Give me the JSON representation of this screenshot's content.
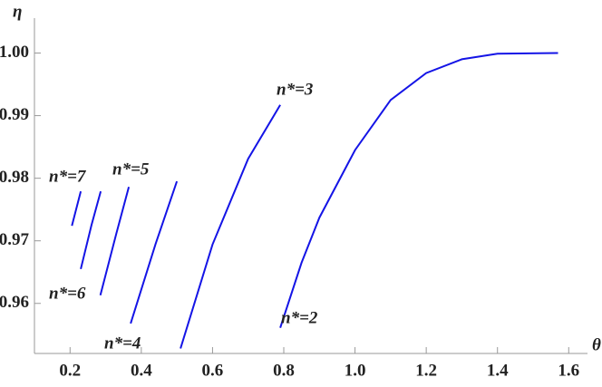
{
  "chart_data": {
    "type": "line",
    "xlabel": "θ",
    "ylabel": "η",
    "xlim": [
      0.1,
      1.64
    ],
    "ylim": [
      0.952,
      1.005
    ],
    "xticks": [
      0.2,
      0.4,
      0.6,
      0.8,
      {
        "value": 1,
        "label": "1.0"
      },
      1.2,
      1.4,
      1.6
    ],
    "yticks": [
      0.96,
      0.97,
      0.98,
      0.99,
      {
        "value": 1,
        "label": "1.00"
      }
    ],
    "series": [
      {
        "name": "n*=2",
        "color": "#1414e6",
        "x": [
          0.79,
          0.85,
          0.9,
          1.0,
          1.1,
          1.2,
          1.3,
          1.4,
          1.57
        ],
        "values": [
          0.9561,
          0.9665,
          0.9737,
          0.9845,
          0.9925,
          0.9968,
          0.999,
          0.9999,
          1.0
        ]
      },
      {
        "name": "n*=3",
        "color": "#1414e6",
        "x": [
          0.51,
          0.6,
          0.7,
          0.79
        ],
        "values": [
          0.9528,
          0.9694,
          0.9831,
          0.9917
        ]
      },
      {
        "name": "n*=4",
        "color": "#1414e6",
        "x": [
          0.37,
          0.44,
          0.5
        ],
        "values": [
          0.9568,
          0.9695,
          0.9795
        ]
      },
      {
        "name": "n*=5",
        "color": "#1414e6",
        "x": [
          0.285,
          0.33,
          0.365
        ],
        "values": [
          0.9613,
          0.9712,
          0.9786
        ]
      },
      {
        "name": "n*=6",
        "color": "#1414e6",
        "x": [
          0.23,
          0.26,
          0.286
        ],
        "values": [
          0.9655,
          0.9725,
          0.9779
        ]
      },
      {
        "name": "n*=7",
        "color": "#1414e6",
        "x": [
          0.205,
          0.23
        ],
        "values": [
          0.9724,
          0.9779
        ]
      }
    ]
  }
}
